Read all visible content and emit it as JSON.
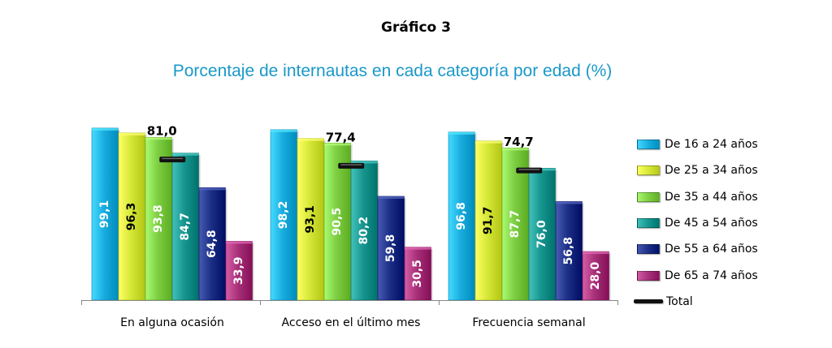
{
  "title": "Gráfico 3",
  "subtitle": "Porcentaje de internautas en cada categoría por edad (%)",
  "chart_data": {
    "type": "bar",
    "categories": [
      "En alguna ocasión",
      "Acceso en el último mes",
      "Frecuencia semanal"
    ],
    "series": [
      {
        "name": "De 16 a 24 años",
        "values": [
          99.1,
          98.2,
          96.8
        ],
        "labels": [
          "99,1",
          "98,2",
          "96,8"
        ],
        "color": "#19aee0",
        "label_color": "#ffffff"
      },
      {
        "name": "De 25 a 34 años",
        "values": [
          96.3,
          93.1,
          91.7
        ],
        "labels": [
          "96,3",
          "93,1",
          "91,7"
        ],
        "color": "#d6e838",
        "label_color": "#000000"
      },
      {
        "name": "De 35 a 44 años",
        "values": [
          93.8,
          90.5,
          87.7
        ],
        "labels": [
          "93,8",
          "90,5",
          "87,7"
        ],
        "color": "#7fcf45",
        "label_color": "#ffffff"
      },
      {
        "name": "De 45 a 54 años",
        "values": [
          84.7,
          80.2,
          76.0
        ],
        "labels": [
          "84,7",
          "80,2",
          "76,0"
        ],
        "color": "#17958f",
        "label_color": "#ffffff"
      },
      {
        "name": "De 55 a 64 años",
        "values": [
          64.8,
          59.8,
          56.8
        ],
        "labels": [
          "64,8",
          "59,8",
          "56,8"
        ],
        "color": "#1c2f86",
        "label_color": "#ffffff"
      },
      {
        "name": "De 65 a 74 años",
        "values": [
          33.9,
          30.5,
          28.0
        ],
        "labels": [
          "33,9",
          "30,5",
          "28,0"
        ],
        "color": "#a8317a",
        "label_color": "#ffffff"
      }
    ],
    "total": {
      "name": "Total",
      "values": [
        81.0,
        77.4,
        74.7
      ],
      "labels": [
        "81,0",
        "77,4",
        "74,7"
      ],
      "color": "#111111"
    },
    "ylim": [
      0,
      100
    ],
    "legend_position": "right",
    "grid": false
  }
}
